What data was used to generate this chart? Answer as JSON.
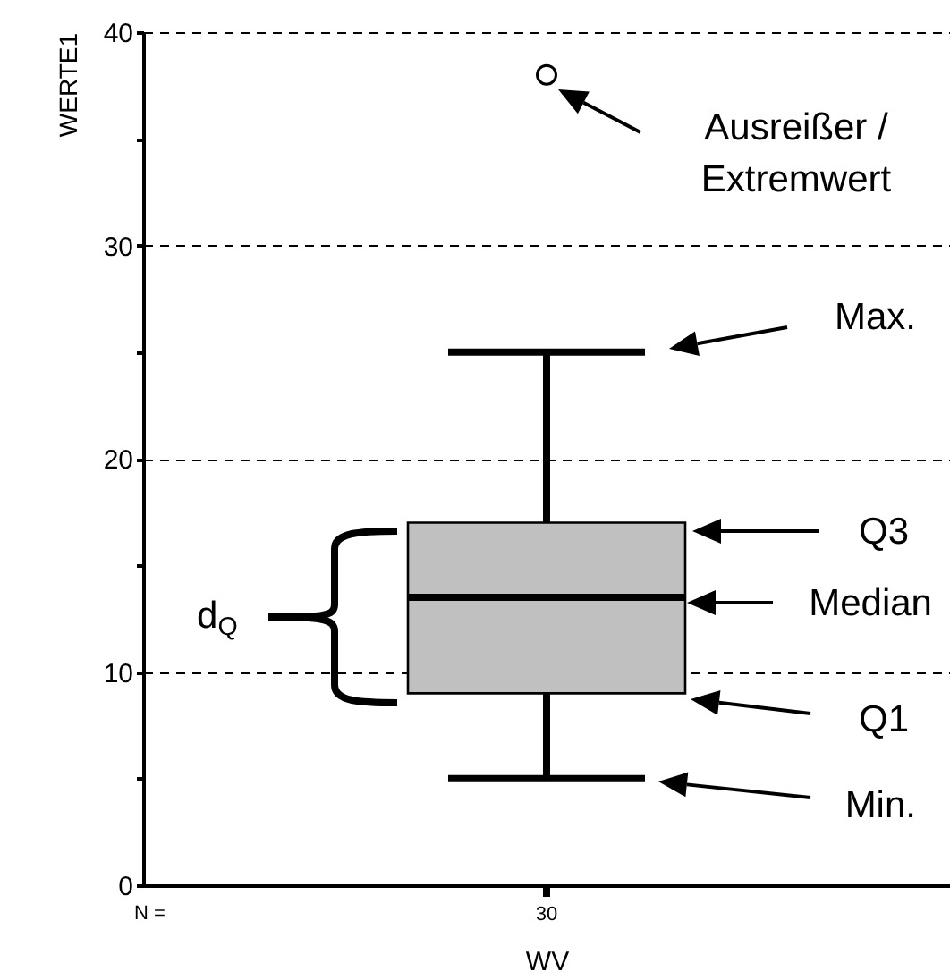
{
  "chart_data": {
    "type": "box",
    "categories": [
      "30"
    ],
    "boxes": [
      {
        "low": 5,
        "q1": 9,
        "median": 13.5,
        "q3": 17,
        "high": 25,
        "outliers": [
          38
        ]
      }
    ],
    "xlabel": "WV",
    "ylabel": "WERTE1",
    "ylim": [
      0,
      40
    ],
    "yticks": [
      0,
      {
        "value": 5,
        "label": null
      },
      10,
      {
        "value": 15,
        "label": null
      },
      20,
      {
        "value": 25,
        "label": null
      },
      30,
      {
        "value": 35,
        "label": null
      },
      40
    ],
    "grid": "y",
    "annotations": [
      "Ausreißer / Extremwert",
      "Max.",
      "Q3",
      "Median",
      "Q1",
      "Min.",
      "d$_{Q}$",
      "N ="
    ]
  }
}
